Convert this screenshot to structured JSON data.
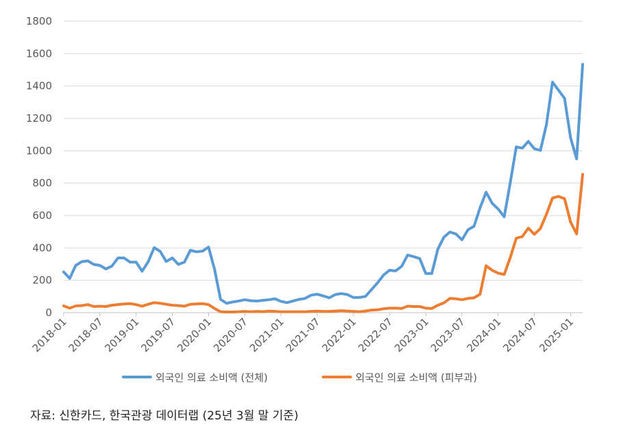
{
  "chart_data": {
    "type": "line",
    "title": "",
    "xlabel": "",
    "ylabel": "",
    "ylim": [
      0,
      1800
    ],
    "y_ticks": [
      "0",
      "200",
      "400",
      "600",
      "800",
      "1000",
      "1200",
      "1400",
      "1600",
      "1800"
    ],
    "x_tick_labels": [
      "2018-01",
      "2018-07",
      "2019-01",
      "2019-07",
      "2020-01",
      "2020-07",
      "2021-01",
      "2021-07",
      "2022-01",
      "2022-07",
      "2023-01",
      "2023-07",
      "2024-01",
      "2024-07",
      "2025-01"
    ],
    "grid": "horizontal",
    "legend_position": "bottom",
    "x": [
      "2018-01",
      "2018-02",
      "2018-03",
      "2018-04",
      "2018-05",
      "2018-06",
      "2018-07",
      "2018-08",
      "2018-09",
      "2018-10",
      "2018-11",
      "2018-12",
      "2019-01",
      "2019-02",
      "2019-03",
      "2019-04",
      "2019-05",
      "2019-06",
      "2019-07",
      "2019-08",
      "2019-09",
      "2019-10",
      "2019-11",
      "2019-12",
      "2020-01",
      "2020-02",
      "2020-03",
      "2020-04",
      "2020-05",
      "2020-06",
      "2020-07",
      "2020-08",
      "2020-09",
      "2020-10",
      "2020-11",
      "2020-12",
      "2021-01",
      "2021-02",
      "2021-03",
      "2021-04",
      "2021-05",
      "2021-06",
      "2021-07",
      "2021-08",
      "2021-09",
      "2021-10",
      "2021-11",
      "2021-12",
      "2022-01",
      "2022-02",
      "2022-03",
      "2022-04",
      "2022-05",
      "2022-06",
      "2022-07",
      "2022-08",
      "2022-09",
      "2022-10",
      "2022-11",
      "2022-12",
      "2023-01",
      "2023-02",
      "2023-03",
      "2023-04",
      "2023-05",
      "2023-06",
      "2023-07",
      "2023-08",
      "2023-09",
      "2023-10",
      "2023-11",
      "2023-12",
      "2024-01",
      "2024-02",
      "2024-03",
      "2024-04",
      "2024-05",
      "2024-06",
      "2024-07",
      "2024-08",
      "2024-09",
      "2024-10",
      "2024-11",
      "2024-12",
      "2025-01",
      "2025-02",
      "2025-03"
    ],
    "series": [
      {
        "name": "외국인 의료 소비액 (전체)",
        "color": "#5B9BD5",
        "values": [
          252,
          212,
          292,
          315,
          320,
          298,
          292,
          270,
          288,
          338,
          338,
          312,
          312,
          256,
          314,
          402,
          378,
          316,
          338,
          298,
          312,
          386,
          376,
          380,
          405,
          268,
          82,
          58,
          66,
          72,
          80,
          74,
          72,
          76,
          80,
          86,
          70,
          62,
          72,
          82,
          88,
          108,
          114,
          104,
          92,
          112,
          118,
          112,
          94,
          94,
          100,
          142,
          184,
          232,
          262,
          258,
          286,
          356,
          346,
          334,
          242,
          242,
          392,
          466,
          498,
          486,
          450,
          512,
          534,
          648,
          744,
          676,
          640,
          592,
          802,
          1024,
          1016,
          1058,
          1012,
          1002,
          1162,
          1424,
          1374,
          1324,
          1080,
          950,
          1534
        ]
      },
      {
        "name": "외국인 의료 소비액 (피부과)",
        "color": "#ED7D31",
        "values": [
          42,
          28,
          42,
          44,
          50,
          38,
          40,
          38,
          46,
          50,
          54,
          56,
          50,
          40,
          52,
          62,
          58,
          52,
          46,
          44,
          40,
          52,
          54,
          56,
          50,
          26,
          6,
          4,
          4,
          6,
          8,
          6,
          8,
          6,
          10,
          8,
          6,
          6,
          6,
          6,
          6,
          8,
          10,
          8,
          8,
          10,
          12,
          10,
          8,
          6,
          10,
          16,
          18,
          24,
          28,
          28,
          26,
          40,
          38,
          38,
          28,
          26,
          46,
          60,
          88,
          86,
          80,
          88,
          92,
          114,
          290,
          262,
          244,
          236,
          340,
          460,
          470,
          522,
          484,
          520,
          608,
          708,
          718,
          704,
          560,
          486,
          854
        ]
      }
    ]
  },
  "source_note": "자료: 신한카드, 한국관광 데이터랩 (25년 3월 말 기준)"
}
